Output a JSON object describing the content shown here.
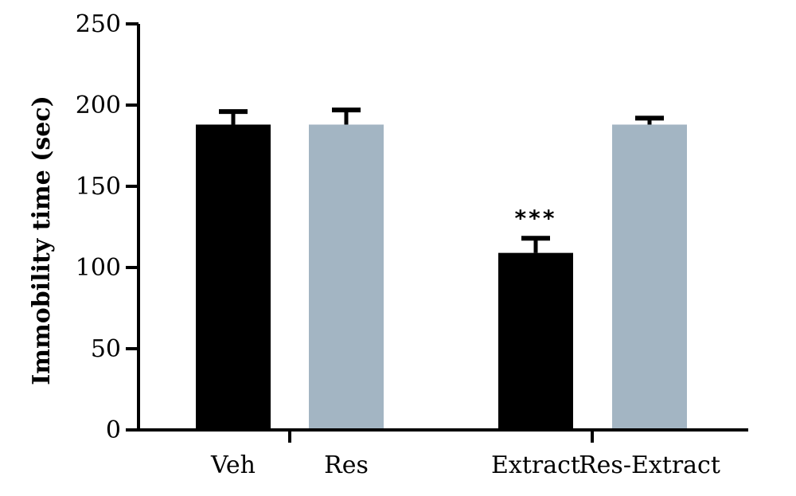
{
  "chart_data": {
    "type": "bar",
    "title": "",
    "xlabel": "",
    "ylabel": "Immobility time (sec)",
    "ylim": [
      0,
      250
    ],
    "yticks": [
      "0",
      "50",
      "100",
      "150",
      "200",
      "250"
    ],
    "categories": [
      "Veh",
      "Res",
      "Extract",
      "Res-Extract"
    ],
    "values": [
      188,
      188,
      109,
      188
    ],
    "errors": [
      8,
      9,
      9,
      4
    ],
    "colors": [
      "#000000",
      "#a3b5c3",
      "#000000",
      "#a3b5c3"
    ],
    "annotations": [
      "",
      "",
      "***",
      ""
    ],
    "grid": false,
    "legend": "none"
  }
}
